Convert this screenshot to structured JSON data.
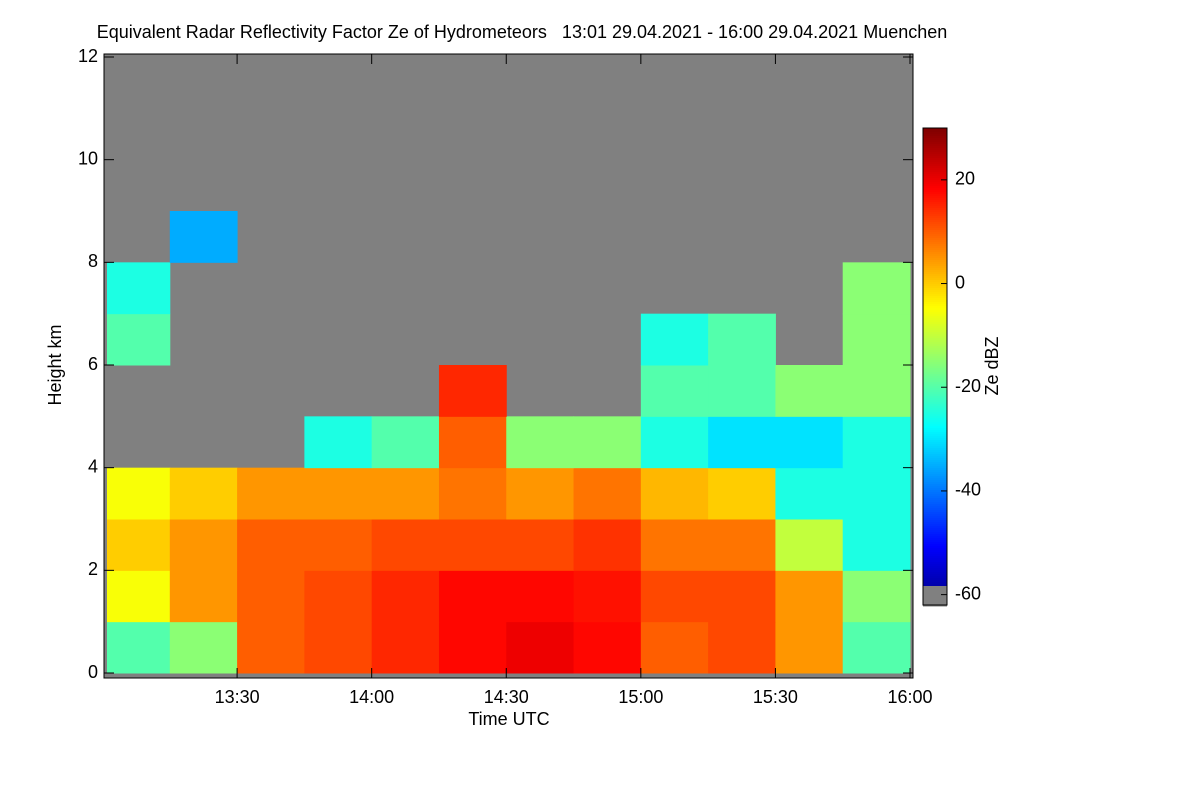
{
  "chart_data": {
    "type": "heatmap",
    "title": "Equivalent Radar Reflectivity Factor Ze of Hydrometeors   13:01 29.04.2021 - 16:00 29.04.2021 Muenchen",
    "xlabel": "Time UTC",
    "ylabel": "Height km",
    "colorbar_label": "Ze dBZ",
    "xlim": [
      781,
      960
    ],
    "xticks": [
      {
        "value": 810,
        "label": "13:30"
      },
      {
        "value": 840,
        "label": "14:00"
      },
      {
        "value": 870,
        "label": "14:30"
      },
      {
        "value": 900,
        "label": "15:00"
      },
      {
        "value": 930,
        "label": "15:30"
      },
      {
        "value": 960,
        "label": "16:00"
      }
    ],
    "ylim": [
      0,
      12
    ],
    "yticks": [
      0,
      2,
      4,
      6,
      8,
      10,
      12
    ],
    "zlim": [
      -62,
      30
    ],
    "zticks": [
      20,
      0,
      -20,
      -40,
      -60
    ],
    "missing_color": "#808080",
    "x_bins": [
      781,
      795,
      810,
      825,
      840,
      855,
      870,
      885,
      900,
      915,
      930,
      945,
      960
    ],
    "y_bins": [
      0,
      1,
      2,
      3,
      4,
      5,
      6,
      7,
      8,
      9,
      10,
      11,
      12
    ],
    "z": [
      [
        -20,
        -15,
        10,
        12,
        15,
        18,
        20,
        18,
        10,
        12,
        5,
        -20
      ],
      [
        -5,
        5,
        10,
        12,
        15,
        18,
        18,
        17,
        12,
        12,
        5,
        -15
      ],
      [
        0,
        5,
        10,
        10,
        12,
        12,
        12,
        14,
        8,
        8,
        -10,
        -25
      ],
      [
        -5,
        0,
        5,
        5,
        5,
        8,
        5,
        8,
        2,
        0,
        -25,
        -25
      ],
      [
        null,
        null,
        null,
        -25,
        -20,
        10,
        -15,
        -15,
        -25,
        -30,
        -30,
        -25
      ],
      [
        null,
        null,
        null,
        null,
        null,
        15,
        null,
        null,
        -20,
        -20,
        -15,
        -15
      ],
      [
        -20,
        null,
        null,
        null,
        null,
        null,
        null,
        null,
        -25,
        -20,
        null,
        -15
      ],
      [
        -25,
        null,
        null,
        null,
        null,
        null,
        null,
        null,
        null,
        null,
        null,
        -15
      ],
      [
        null,
        -35,
        null,
        null,
        null,
        null,
        null,
        null,
        null,
        null,
        null,
        null
      ],
      [
        null,
        null,
        null,
        null,
        null,
        null,
        null,
        null,
        null,
        null,
        null,
        null
      ],
      [
        null,
        null,
        null,
        null,
        null,
        null,
        null,
        null,
        null,
        null,
        null,
        null
      ],
      [
        null,
        null,
        null,
        null,
        null,
        null,
        null,
        null,
        null,
        null,
        null,
        null
      ]
    ]
  }
}
